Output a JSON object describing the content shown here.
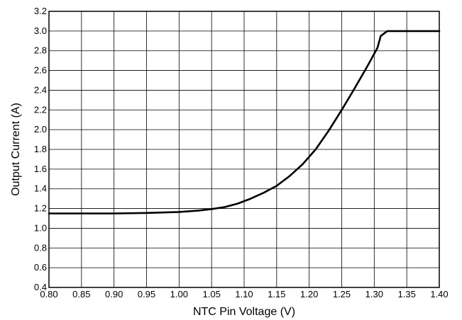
{
  "chart_data": {
    "type": "line",
    "xlabel": "NTC Pin Voltage (V)",
    "ylabel": "Output Current (A)",
    "xlim": [
      0.8,
      1.4
    ],
    "ylim": [
      0.4,
      3.2
    ],
    "x_ticks": [
      "0.80",
      "0.85",
      "0.90",
      "0.95",
      "1.00",
      "1.05",
      "1.10",
      "1.15",
      "1.20",
      "1.25",
      "1.30",
      "1.35",
      "1.40"
    ],
    "y_ticks": [
      "0.4",
      "0.6",
      "0.8",
      "1.0",
      "1.2",
      "1.4",
      "1.6",
      "1.8",
      "2.0",
      "2.2",
      "2.4",
      "2.6",
      "2.8",
      "3.0",
      "3.2"
    ],
    "grid": true,
    "series": [
      {
        "color": "#000000",
        "x": [
          0.8,
          0.85,
          0.9,
          0.95,
          1.0,
          1.03,
          1.05,
          1.07,
          1.09,
          1.11,
          1.13,
          1.15,
          1.17,
          1.19,
          1.21,
          1.23,
          1.25,
          1.27,
          1.29,
          1.305,
          1.31,
          1.32,
          1.35,
          1.4
        ],
        "y": [
          1.15,
          1.15,
          1.15,
          1.155,
          1.165,
          1.18,
          1.195,
          1.215,
          1.25,
          1.3,
          1.36,
          1.43,
          1.53,
          1.65,
          1.8,
          1.99,
          2.2,
          2.42,
          2.65,
          2.83,
          2.95,
          3.0,
          3.0,
          3.0
        ]
      }
    ]
  }
}
